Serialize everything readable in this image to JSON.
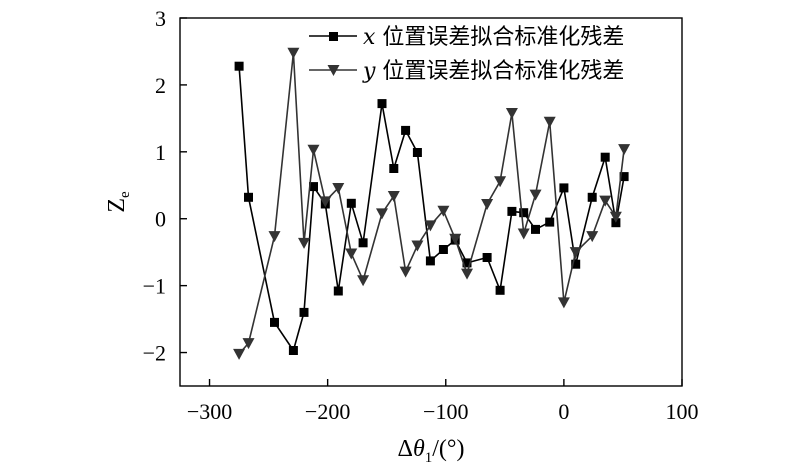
{
  "chart_data": {
    "type": "line",
    "title": "",
    "xlabel": {
      "prefix": "Δ",
      "var": "θ",
      "sub": "1",
      "suffix": "/(°)"
    },
    "ylabel": {
      "var": "Z",
      "sub": "e"
    },
    "xlim": [
      -325,
      100
    ],
    "ylim": [
      -2.5,
      3
    ],
    "xticks": [
      -300,
      -200,
      -100,
      0,
      100
    ],
    "yticks": [
      -2,
      -1,
      0,
      1,
      2,
      3
    ],
    "xtick_labels": [
      "−300",
      "−200",
      "−100",
      "0",
      "100"
    ],
    "ytick_labels": [
      "−2",
      "−1",
      "0",
      "1",
      "2",
      "3"
    ],
    "grid": false,
    "legend_position": "top-right",
    "series": [
      {
        "name_var": "x",
        "name_text": " 位置误差拟合标准化残差",
        "marker": "square",
        "color": "#000000",
        "points": [
          [
            -275,
            2.28
          ],
          [
            -267,
            0.32
          ],
          [
            -245,
            -1.55
          ],
          [
            -229,
            -1.97
          ],
          [
            -220,
            -1.4
          ],
          [
            -212,
            0.48
          ],
          [
            -202,
            0.22
          ],
          [
            -191,
            -1.08
          ],
          [
            -180,
            0.23
          ],
          [
            -170,
            -0.36
          ],
          [
            -154,
            1.72
          ],
          [
            -144,
            0.75
          ],
          [
            -134,
            1.32
          ],
          [
            -124,
            0.99
          ],
          [
            -113,
            -0.63
          ],
          [
            -102,
            -0.46
          ],
          [
            -92,
            -0.32
          ],
          [
            -82,
            -0.66
          ],
          [
            -65,
            -0.58
          ],
          [
            -54,
            -1.07
          ],
          [
            -44,
            0.11
          ],
          [
            -34,
            0.09
          ],
          [
            -24,
            -0.16
          ],
          [
            -12,
            -0.05
          ],
          [
            0,
            0.46
          ],
          [
            10,
            -0.68
          ],
          [
            24,
            0.32
          ],
          [
            35,
            0.92
          ],
          [
            44,
            -0.06
          ],
          [
            51,
            0.63
          ]
        ]
      },
      {
        "name_var": "y",
        "name_text": " 位置误差拟合标准化残差",
        "marker": "triangle-down",
        "color": "#333333",
        "points": [
          [
            -275,
            -2.02
          ],
          [
            -267,
            -1.86
          ],
          [
            -245,
            -0.26
          ],
          [
            -229,
            2.48
          ],
          [
            -220,
            -0.36
          ],
          [
            -212,
            1.03
          ],
          [
            -202,
            0.26
          ],
          [
            -191,
            0.46
          ],
          [
            -180,
            -0.52
          ],
          [
            -170,
            -0.92
          ],
          [
            -154,
            0.08
          ],
          [
            -144,
            0.34
          ],
          [
            -134,
            -0.79
          ],
          [
            -124,
            -0.4
          ],
          [
            -113,
            -0.1
          ],
          [
            -102,
            0.12
          ],
          [
            -92,
            -0.3
          ],
          [
            -82,
            -0.82
          ],
          [
            -65,
            0.22
          ],
          [
            -54,
            0.56
          ],
          [
            -44,
            1.58
          ],
          [
            -34,
            -0.22
          ],
          [
            -24,
            0.36
          ],
          [
            -12,
            1.45
          ],
          [
            0,
            -1.25
          ],
          [
            10,
            -0.5
          ],
          [
            24,
            -0.26
          ],
          [
            35,
            0.27
          ],
          [
            44,
            0.03
          ],
          [
            51,
            1.04
          ]
        ]
      }
    ]
  }
}
